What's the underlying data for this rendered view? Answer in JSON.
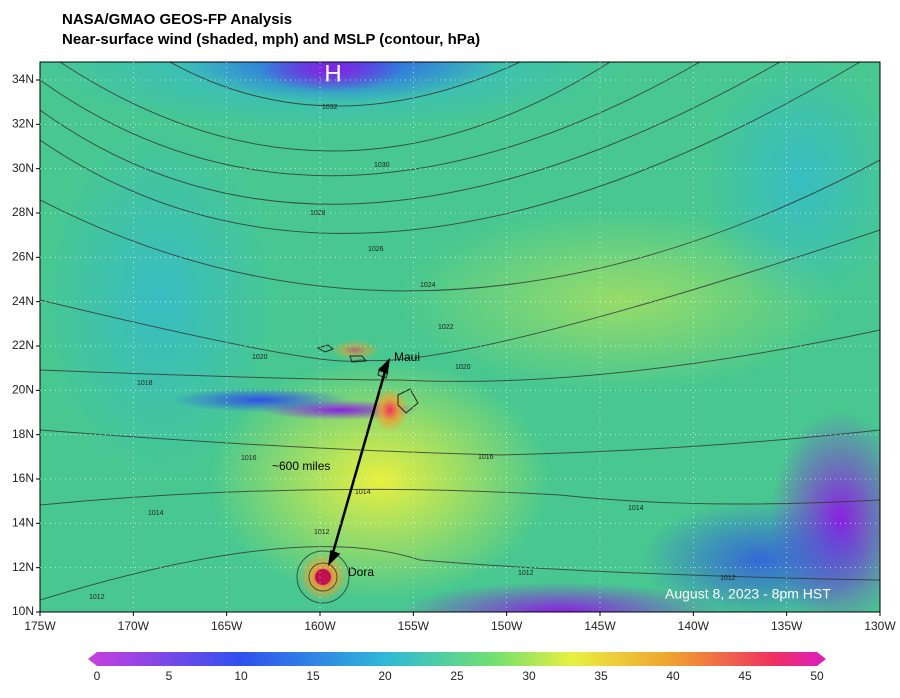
{
  "header": {
    "title": "NASA/GMAO GEOS-FP Analysis",
    "subtitle": "Near-surface wind (shaded, mph) and MSLP (contour, hPa)"
  },
  "map": {
    "lon_labels": [
      "175W",
      "170W",
      "165W",
      "160W",
      "155W",
      "150W",
      "145W",
      "140W",
      "135W",
      "130W"
    ],
    "lat_labels": [
      "34N",
      "32N",
      "30N",
      "28N",
      "26N",
      "24N",
      "22N",
      "20N",
      "18N",
      "16N",
      "14N",
      "12N",
      "10N"
    ],
    "contour_labels": [
      1032,
      1030,
      1028,
      1026,
      1024,
      1022,
      1020,
      1020,
      1018,
      1016,
      1016,
      1014,
      1014,
      1014,
      1012,
      1012,
      1012,
      1012
    ],
    "annotations": {
      "high": "H",
      "maui": "Maui",
      "distance": "~600 miles",
      "dora": "Dora",
      "timestamp": "August 8, 2023 - 8pm HST"
    }
  },
  "colorbar": {
    "ticks": [
      0,
      5,
      10,
      15,
      20,
      25,
      30,
      35,
      40,
      45,
      50
    ]
  }
}
